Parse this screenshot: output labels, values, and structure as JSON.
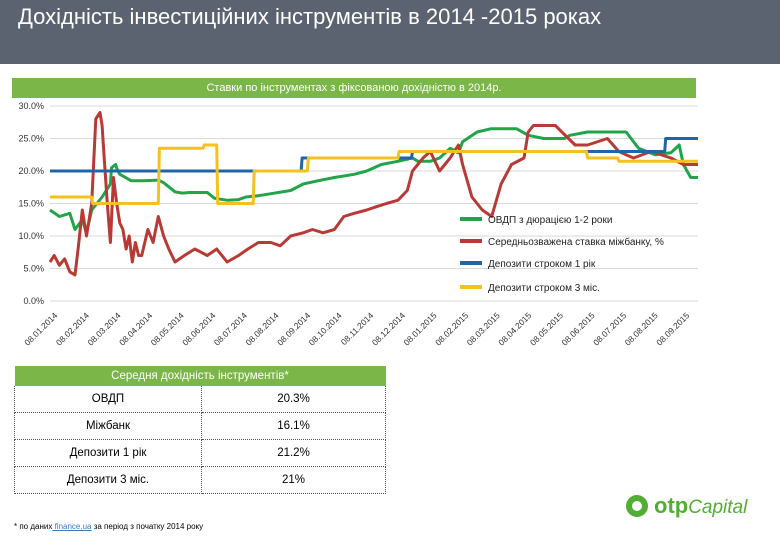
{
  "page": {
    "title": "Дохідність інвестиційних інструментів в 2014 -2015 роках"
  },
  "chart_data": {
    "type": "line",
    "title": "Ставки по інструментах з фіксованою дохідністю  в 2014р.",
    "legend_position": "right",
    "grid": true,
    "ylim": [
      0,
      30
    ],
    "y_ticks": [
      "0.0%",
      "5.0%",
      "10.0%",
      "15.0%",
      "20.0%",
      "25.0%",
      "30.0%"
    ],
    "x_ticks": [
      "08.01.2014",
      "08.02.2014",
      "08.03.2014",
      "08.04.2014",
      "08.05.2014",
      "08.06.2014",
      "08.07.2014",
      "08.08.2014",
      "08.09.2014",
      "08.10.2014",
      "08.11.2014",
      "08.12.2014",
      "08.01.2015",
      "08.02.2015",
      "08.03.2015",
      "08.04.2015",
      "08.05.2015",
      "08.06.2015",
      "08.07.2015",
      "08.08.2015",
      "08.09.2015"
    ],
    "series": [
      {
        "name": "ОВДП з дюрацією 1-2 роки",
        "color": "#21a44a",
        "x": [
          "2014-01-01",
          "2014-01-10",
          "2014-01-20",
          "2014-01-25",
          "2014-02-01",
          "2014-02-05",
          "2014-02-10",
          "2014-02-20",
          "2014-02-28",
          "2014-03-01",
          "2014-03-05",
          "2014-03-07",
          "2014-03-09",
          "2014-03-20",
          "2014-04-01",
          "2014-04-15",
          "2014-04-20",
          "2014-05-01",
          "2014-05-08",
          "2014-05-15",
          "2014-06-01",
          "2014-06-08",
          "2014-06-20",
          "2014-07-01",
          "2014-07-08",
          "2014-07-20",
          "2014-08-01",
          "2014-08-20",
          "2014-09-01",
          "2014-09-15",
          "2014-10-01",
          "2014-10-20",
          "2014-11-01",
          "2014-11-15",
          "2014-12-01",
          "2014-12-15",
          "2014-12-20",
          "2015-01-01",
          "2015-01-10",
          "2015-01-20",
          "2015-01-28",
          "2015-02-01",
          "2015-02-15",
          "2015-02-28",
          "2015-03-10",
          "2015-03-25",
          "2015-04-05",
          "2015-04-20",
          "2015-05-10",
          "2015-05-15",
          "2015-06-01",
          "2015-06-20",
          "2015-07-08",
          "2015-07-20",
          "2015-08-05",
          "2015-08-20",
          "2015-08-28",
          "2015-09-01",
          "2015-09-08",
          "2015-09-15"
        ],
        "values": [
          14,
          13,
          13.5,
          11,
          12.5,
          10.5,
          14,
          16,
          18,
          20.5,
          21,
          20,
          19.5,
          18.5,
          18.5,
          18.6,
          18.2,
          16.8,
          16.6,
          16.7,
          16.7,
          15.8,
          15.5,
          15.6,
          16,
          16.2,
          16.5,
          17,
          18,
          18.5,
          19,
          19.5,
          20,
          21,
          21.5,
          22,
          21.5,
          21.5,
          22,
          23.5,
          22.8,
          24.5,
          26,
          26.5,
          26.5,
          26.5,
          25.5,
          25,
          25,
          25.5,
          26,
          26,
          26,
          23.5,
          22.5,
          22.8,
          24,
          21,
          19,
          19
        ]
      },
      {
        "name": "Середньозважена ставка міжбанку, %",
        "color": "#b83a35",
        "x": [
          "2014-01-01",
          "2014-01-05",
          "2014-01-10",
          "2014-01-15",
          "2014-01-20",
          "2014-01-25",
          "2014-01-28",
          "2014-02-01",
          "2014-02-05",
          "2014-02-10",
          "2014-02-14",
          "2014-02-18",
          "2014-02-20",
          "2014-02-22",
          "2014-02-25",
          "2014-02-28",
          "2014-03-03",
          "2014-03-06",
          "2014-03-09",
          "2014-03-12",
          "2014-03-15",
          "2014-03-18",
          "2014-03-21",
          "2014-03-24",
          "2014-03-27",
          "2014-03-30",
          "2014-04-05",
          "2014-04-10",
          "2014-04-15",
          "2014-04-20",
          "2014-04-25",
          "2014-05-01",
          "2014-05-10",
          "2014-05-20",
          "2014-06-01",
          "2014-06-10",
          "2014-06-20",
          "2014-07-01",
          "2014-07-10",
          "2014-07-20",
          "2014-08-01",
          "2014-08-10",
          "2014-08-20",
          "2014-09-01",
          "2014-09-10",
          "2014-09-20",
          "2014-10-01",
          "2014-10-10",
          "2014-10-20",
          "2014-11-01",
          "2014-11-10",
          "2014-11-20",
          "2014-12-01",
          "2014-12-10",
          "2014-12-15",
          "2014-12-20",
          "2014-12-25",
          "2015-01-01",
          "2015-01-10",
          "2015-01-20",
          "2015-01-28",
          "2015-02-01",
          "2015-02-10",
          "2015-02-20",
          "2015-03-01",
          "2015-03-10",
          "2015-03-20",
          "2015-04-01",
          "2015-04-05",
          "2015-04-10",
          "2015-05-01",
          "2015-05-20",
          "2015-06-01",
          "2015-06-20",
          "2015-07-01",
          "2015-07-15",
          "2015-08-01",
          "2015-08-20",
          "2015-09-01",
          "2015-09-15"
        ],
        "values": [
          6,
          7,
          5.5,
          6.5,
          4.5,
          4,
          8,
          14,
          10,
          15,
          28,
          29,
          27,
          22,
          15,
          9,
          19,
          15,
          12,
          11,
          8,
          10,
          6,
          9,
          7,
          7,
          11,
          9,
          13,
          10,
          8,
          6,
          7,
          8,
          7,
          8,
          6,
          7,
          8,
          9,
          9,
          8.5,
          10,
          10.5,
          11,
          10.5,
          11,
          13,
          13.5,
          14,
          14.5,
          15,
          15.5,
          17,
          20,
          21,
          22,
          23,
          20,
          22,
          24,
          21,
          16,
          14,
          13,
          18,
          21,
          22,
          26,
          27,
          27,
          24,
          24,
          25,
          23,
          22,
          23,
          22,
          21,
          21
        ]
      },
      {
        "name": "Депозити строком 1 рік",
        "color": "#1f66a9",
        "x": [
          "2014-01-01",
          "2014-08-30",
          "2014-08-31",
          "2014-12-14",
          "2014-12-15",
          "2015-01-01",
          "2015-07-01",
          "2015-08-14",
          "2015-08-15",
          "2015-09-15"
        ],
        "values": [
          20,
          20,
          22,
          22,
          23,
          23,
          23,
          23,
          25,
          25
        ]
      },
      {
        "name": "Депозити строком 3 міс.",
        "color": "#f4c11e",
        "x": [
          "2014-01-01",
          "2014-02-10",
          "2014-02-11",
          "2014-04-15",
          "2014-04-16",
          "2014-05-28",
          "2014-05-29",
          "2014-06-10",
          "2014-06-11",
          "2014-07-15",
          "2014-07-16",
          "2014-09-05",
          "2014-09-06",
          "2014-12-01",
          "2014-12-02",
          "2015-01-01",
          "2015-02-01",
          "2015-03-15",
          "2015-03-16",
          "2015-05-31",
          "2015-06-01",
          "2015-06-30",
          "2015-07-01",
          "2015-09-15"
        ],
        "values": [
          16,
          16,
          15,
          15,
          23.5,
          23.5,
          24,
          24,
          15,
          15,
          20,
          20,
          22,
          22,
          23,
          23,
          23,
          23,
          23,
          23,
          22,
          22,
          21.5,
          21.5
        ]
      }
    ]
  },
  "summary": {
    "header": "Середня дохідність інструментів*",
    "rows": [
      {
        "name": "ОВДП",
        "value": "20.3%"
      },
      {
        "name": "Міжбанк",
        "value": "16.1%"
      },
      {
        "name": "Депозити 1 рік",
        "value": "21.2%"
      },
      {
        "name": "Депозити 3 міс.",
        "value": "21%"
      }
    ]
  },
  "footnote": {
    "prefix": "* по даних",
    "link": " finance.ua",
    "suffix": " за період з початку 2014 року"
  },
  "logo": {
    "brand": "otp",
    "suffix": "Capital"
  }
}
